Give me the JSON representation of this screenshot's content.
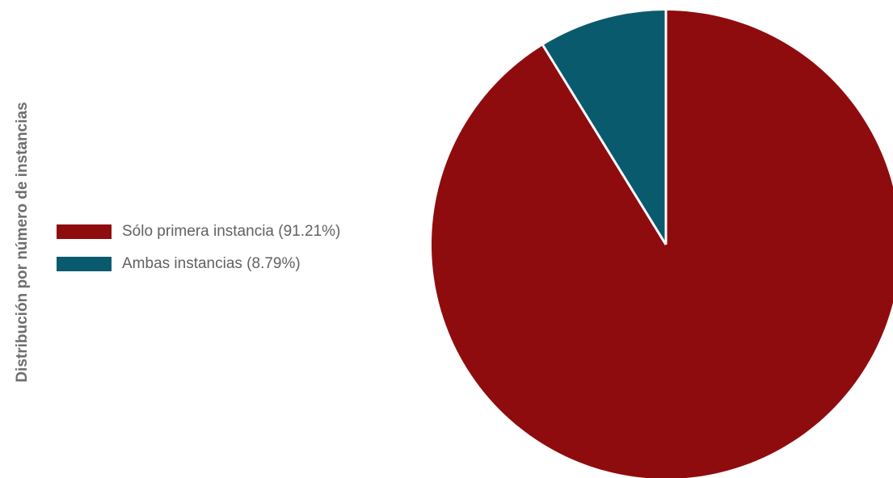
{
  "chart_data": {
    "type": "pie",
    "title": "Distribución por número de instancias",
    "start_angle_deg": 0,
    "direction": "clockwise",
    "legend_position": "left",
    "series": [
      {
        "name": "Sólo primera instancia (91.21%)",
        "value": 91.21,
        "color": "#8f0c0e"
      },
      {
        "name": "Ambas instancias (8.79%)",
        "value": 8.79,
        "color": "#0a5a6e"
      }
    ]
  }
}
